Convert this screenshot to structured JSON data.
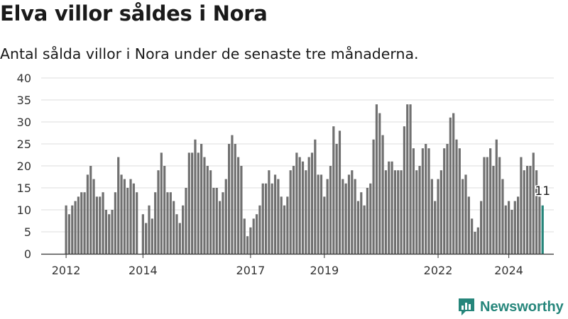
{
  "title": "Elva villor såldes i Nora",
  "subtitle": "Antal sålda villor i Nora under de senaste tre månaderna.",
  "brand": "Newsworthy",
  "colors": {
    "bar": "#707070",
    "highlight": "#26867b",
    "grid": "#dddddd",
    "axis": "#333333",
    "text": "#1a1a1a"
  },
  "chart_data": {
    "type": "bar",
    "title": "Elva villor såldes i Nora",
    "subtitle": "Antal sålda villor i Nora under de senaste tre månaderna.",
    "xlabel": "",
    "ylabel": "",
    "ylim": [
      0,
      40
    ],
    "yticks": [
      0,
      5,
      10,
      15,
      20,
      25,
      30,
      35,
      40
    ],
    "grid": true,
    "start": "2012-01",
    "frequency": "monthly",
    "xtick_labels": [
      "2012",
      "2014",
      "2017",
      "2019",
      "2022",
      "2024"
    ],
    "xtick_months": [
      "2012-01",
      "2014-02",
      "2017-01",
      "2019-01",
      "2022-02",
      "2024-01"
    ],
    "highlight_label": "11",
    "values": [
      11,
      9,
      11,
      12,
      13,
      14,
      14,
      18,
      20,
      17,
      13,
      13,
      14,
      10,
      9,
      10,
      14,
      22,
      18,
      17,
      15,
      17,
      16,
      14,
      0,
      9,
      7,
      11,
      8,
      14,
      19,
      23,
      20,
      14,
      14,
      12,
      9,
      7,
      11,
      15,
      23,
      23,
      26,
      23,
      25,
      22,
      20,
      19,
      15,
      15,
      12,
      14,
      17,
      25,
      27,
      25,
      22,
      20,
      8,
      4,
      6,
      8,
      9,
      11,
      16,
      16,
      19,
      16,
      18,
      17,
      13,
      11,
      13,
      19,
      20,
      23,
      22,
      21,
      19,
      22,
      23,
      26,
      18,
      18,
      13,
      17,
      20,
      29,
      25,
      28,
      17,
      16,
      18,
      19,
      17,
      12,
      14,
      11,
      15,
      16,
      26,
      34,
      32,
      27,
      19,
      21,
      21,
      19,
      19,
      19,
      29,
      34,
      34,
      24,
      19,
      20,
      24,
      25,
      24,
      17,
      12,
      17,
      19,
      24,
      25,
      31,
      32,
      26,
      24,
      17,
      18,
      13,
      8,
      5,
      6,
      12,
      22,
      22,
      24,
      20,
      26,
      22,
      17,
      11,
      12,
      10,
      12,
      13,
      22,
      19,
      20,
      20,
      23,
      19,
      13,
      11
    ]
  }
}
